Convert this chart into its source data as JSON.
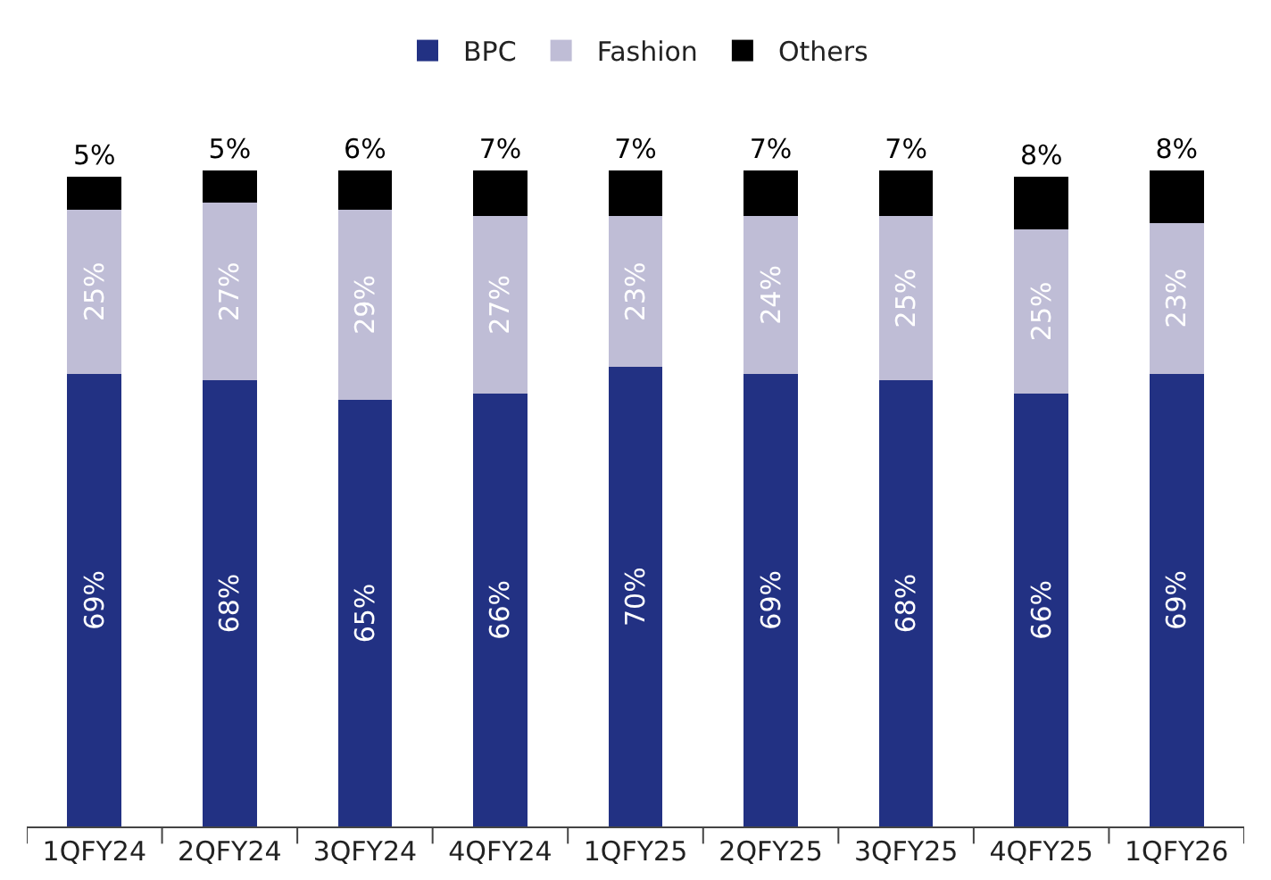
{
  "chart_data": {
    "type": "bar",
    "stacked": true,
    "legend": "top",
    "categories": [
      "1QFY24",
      "2QFY24",
      "3QFY24",
      "4QFY24",
      "1QFY25",
      "2QFY25",
      "3QFY25",
      "4QFY25",
      "1QFY26"
    ],
    "series": [
      {
        "name": "BPC",
        "color": "#223183",
        "values": [
          69,
          68,
          65,
          66,
          70,
          69,
          68,
          66,
          69
        ],
        "value_labels": [
          "69%",
          "68%",
          "65%",
          "66%",
          "70%",
          "69%",
          "68%",
          "66%",
          "69%"
        ]
      },
      {
        "name": "Fashion",
        "color": "#bfbdd6",
        "values": [
          25,
          27,
          29,
          27,
          23,
          24,
          25,
          25,
          23
        ],
        "value_labels": [
          "25%",
          "27%",
          "29%",
          "27%",
          "23%",
          "24%",
          "25%",
          "25%",
          "23%"
        ]
      },
      {
        "name": "Others",
        "color": "#000000",
        "values": [
          5,
          5,
          6,
          7,
          7,
          7,
          7,
          8,
          8
        ],
        "value_labels": [
          "5%",
          "5%",
          "6%",
          "7%",
          "7%",
          "7%",
          "7%",
          "8%",
          "8%"
        ]
      }
    ]
  }
}
